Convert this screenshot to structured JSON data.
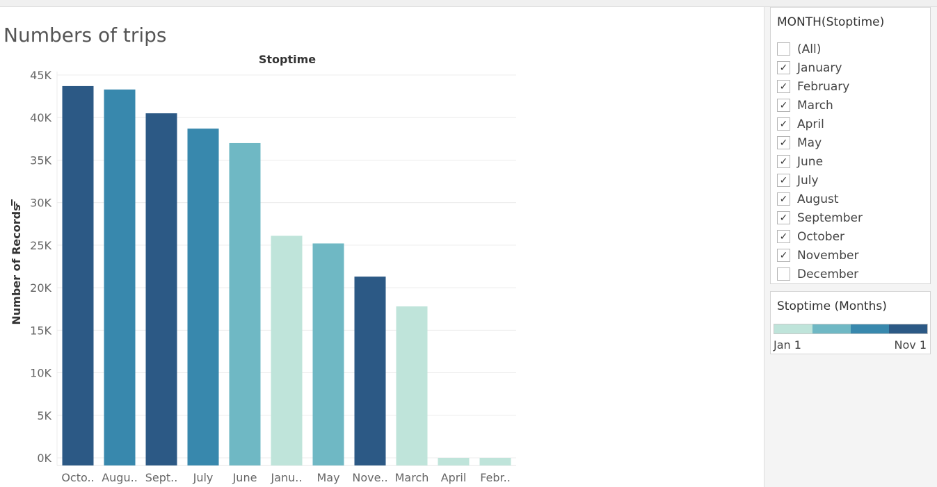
{
  "sheet": {
    "title": "Numbers of trips"
  },
  "chart_data": {
    "type": "bar",
    "title": "Stoptime",
    "xlabel": "",
    "ylabel": "Number of Records",
    "ylim": [
      0,
      45000
    ],
    "yticks": [
      0,
      5000,
      10000,
      15000,
      20000,
      25000,
      30000,
      35000,
      40000,
      45000
    ],
    "ytick_labels": [
      "0K",
      "5K",
      "10K",
      "15K",
      "20K",
      "25K",
      "30K",
      "35K",
      "40K",
      "45K"
    ],
    "grid": true,
    "categories": [
      "Octo..",
      "Augu..",
      "Sept..",
      "July",
      "June",
      "Janu..",
      "May",
      "Nove..",
      "March",
      "April",
      "Febr.."
    ],
    "values": [
      43700,
      43300,
      40500,
      38700,
      37000,
      26100,
      25200,
      21300,
      17800,
      0,
      0
    ],
    "bar_colors": [
      "#2c5985",
      "#3888ad",
      "#2c5985",
      "#3888ad",
      "#6fb8c4",
      "#bfe4da",
      "#6fb8c4",
      "#2c5985",
      "#bfe4da",
      "#bfe4da",
      "#bfe4da"
    ]
  },
  "filter": {
    "title": "MONTH(Stoptime)",
    "items": [
      {
        "label": "(All)",
        "checked": false
      },
      {
        "label": "January",
        "checked": true
      },
      {
        "label": "February",
        "checked": true
      },
      {
        "label": "March",
        "checked": true
      },
      {
        "label": "April",
        "checked": true
      },
      {
        "label": "May",
        "checked": true
      },
      {
        "label": "June",
        "checked": true
      },
      {
        "label": "July",
        "checked": true
      },
      {
        "label": "August",
        "checked": true
      },
      {
        "label": "September",
        "checked": true
      },
      {
        "label": "October",
        "checked": true
      },
      {
        "label": "November",
        "checked": true
      },
      {
        "label": "December",
        "checked": false
      }
    ]
  },
  "legend": {
    "title": "Stoptime (Months)",
    "min_label": "Jan 1",
    "max_label": "Nov 1",
    "ramp_colors": [
      "#bfe4da",
      "#6fb8c4",
      "#3888ad",
      "#2c5985"
    ]
  }
}
